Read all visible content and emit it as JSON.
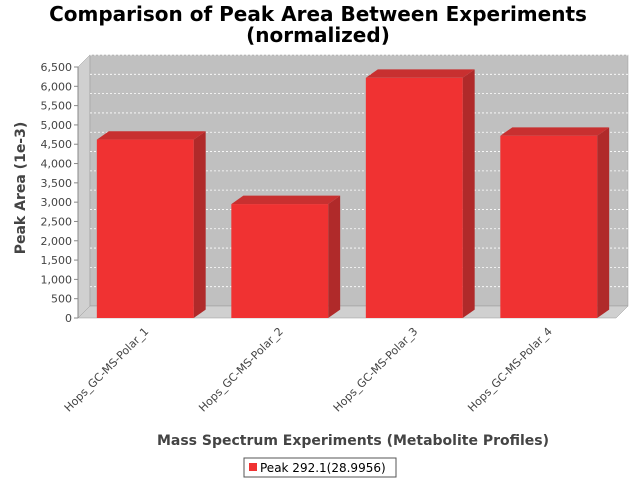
{
  "chart_data": {
    "type": "bar",
    "title_line1": "Comparison of Peak Area Between Experiments",
    "title_line2": "(normalized)",
    "xlabel": "Mass Spectrum Experiments (Metabolite Profiles)",
    "ylabel": "Peak Area (1e-3)",
    "categories": [
      "Hops_GC-MS-Polar_1",
      "Hops_GC-MS-Polar_2",
      "Hops_GC-MS-Polar_3",
      "Hops_GC-MS-Polar_4"
    ],
    "series": [
      {
        "name": "Peak 292.1(28.9956)",
        "values": [
          4620,
          2950,
          6220,
          4720
        ]
      }
    ],
    "ylim": [
      0,
      6500
    ],
    "yticks": [
      0,
      500,
      1000,
      1500,
      2000,
      2500,
      3000,
      3500,
      4000,
      4500,
      5000,
      5500,
      6000,
      6500
    ],
    "ytick_labels": [
      "0",
      "500",
      "1,000",
      "1,500",
      "2,000",
      "2,500",
      "3,000",
      "3,500",
      "4,000",
      "4,500",
      "5,000",
      "5,500",
      "6,000",
      "6,500"
    ],
    "grid": true,
    "legend_position": "bottom-center",
    "colors": {
      "bar_front": "#f03232",
      "bar_side": "#b02a2a",
      "bar_top": "#c83030",
      "plot_bg": "#c0c0c0",
      "wall": "#d0d0d0",
      "grid": "#ffffff"
    }
  }
}
